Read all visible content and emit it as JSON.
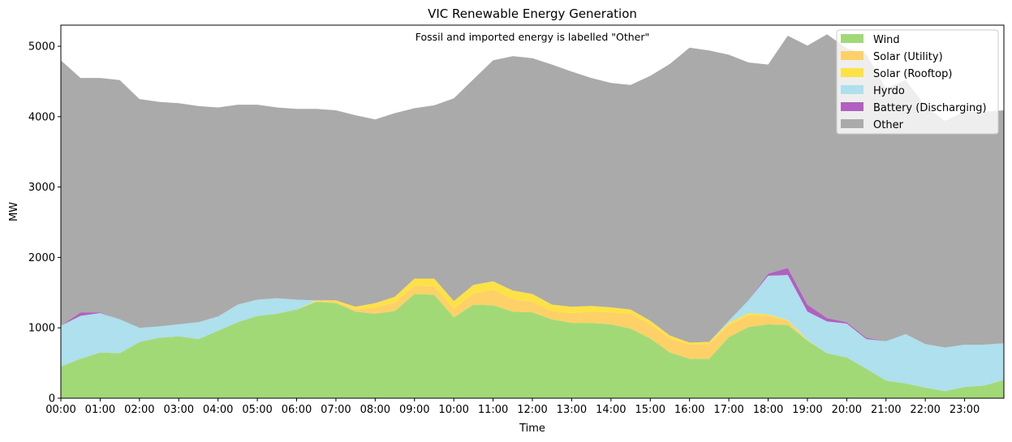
{
  "chart_data": {
    "type": "area",
    "stacked": true,
    "title": "VIC Renewable Energy Generation",
    "subtitle": "Fossil and imported energy is labelled \"Other\"",
    "xlabel": "Time",
    "ylabel": "MW",
    "xlim": [
      0,
      24
    ],
    "ylim": [
      0,
      5300
    ],
    "yticks": [
      0,
      1000,
      2000,
      3000,
      4000,
      5000
    ],
    "x_tick_labels": [
      "00:00",
      "01:00",
      "02:00",
      "03:00",
      "04:00",
      "05:00",
      "06:00",
      "07:00",
      "08:00",
      "09:00",
      "10:00",
      "11:00",
      "12:00",
      "13:00",
      "14:00",
      "15:00",
      "16:00",
      "17:00",
      "18:00",
      "19:00",
      "20:00",
      "21:00",
      "22:00",
      "23:00"
    ],
    "legend_position": "top-right",
    "x": [
      0,
      0.5,
      1,
      1.5,
      2,
      2.5,
      3,
      3.5,
      4,
      4.5,
      5,
      5.5,
      6,
      6.5,
      7,
      7.5,
      8,
      8.5,
      9,
      9.5,
      10,
      10.5,
      11,
      11.5,
      12,
      12.5,
      13,
      13.5,
      14,
      14.5,
      15,
      15.5,
      16,
      16.5,
      17,
      17.5,
      18,
      18.5,
      19,
      19.5,
      20,
      20.5,
      21,
      21.5,
      22,
      22.5,
      23,
      23.5,
      24
    ],
    "series": [
      {
        "name": "Wind",
        "color": "#a2d977",
        "values": [
          450,
          560,
          650,
          640,
          800,
          860,
          880,
          840,
          960,
          1080,
          1170,
          1200,
          1260,
          1370,
          1350,
          1230,
          1200,
          1240,
          1480,
          1470,
          1150,
          1330,
          1320,
          1230,
          1220,
          1120,
          1070,
          1070,
          1050,
          990,
          850,
          650,
          560,
          560,
          870,
          1010,
          1050,
          1040,
          820,
          640,
          580,
          420,
          250,
          210,
          150,
          100,
          160,
          180,
          260
        ]
      },
      {
        "name": "Solar (Utility)",
        "color": "#fdd167",
        "values": [
          0,
          0,
          0,
          0,
          0,
          0,
          0,
          0,
          0,
          0,
          0,
          0,
          0,
          10,
          20,
          30,
          90,
          120,
          120,
          120,
          120,
          160,
          220,
          180,
          150,
          120,
          140,
          160,
          170,
          210,
          200,
          200,
          200,
          210,
          170,
          170,
          120,
          60,
          0,
          0,
          0,
          0,
          0,
          0,
          0,
          0,
          0,
          0,
          0
        ]
      },
      {
        "name": "Solar (Rooftop)",
        "color": "#fde246",
        "values": [
          0,
          0,
          0,
          0,
          0,
          0,
          0,
          0,
          0,
          0,
          0,
          0,
          0,
          10,
          20,
          40,
          60,
          80,
          100,
          110,
          110,
          120,
          120,
          120,
          110,
          90,
          90,
          80,
          70,
          60,
          50,
          40,
          30,
          30,
          30,
          30,
          20,
          10,
          10,
          0,
          0,
          0,
          0,
          0,
          0,
          0,
          0,
          0,
          0
        ]
      },
      {
        "name": "Hyrdo",
        "color": "#aee0ed",
        "values": [
          580,
          610,
          560,
          480,
          200,
          160,
          170,
          240,
          200,
          250,
          230,
          220,
          140,
          0,
          0,
          0,
          0,
          0,
          0,
          0,
          0,
          0,
          0,
          0,
          0,
          0,
          0,
          0,
          0,
          0,
          0,
          0,
          0,
          0,
          30,
          180,
          550,
          640,
          400,
          450,
          480,
          420,
          560,
          700,
          620,
          620,
          600,
          580,
          520
        ]
      },
      {
        "name": "Battery (Discharging)",
        "color": "#b160bf",
        "values": [
          0,
          50,
          10,
          0,
          0,
          0,
          0,
          0,
          0,
          0,
          0,
          0,
          0,
          0,
          0,
          0,
          0,
          0,
          0,
          0,
          0,
          0,
          0,
          0,
          0,
          0,
          0,
          0,
          0,
          0,
          0,
          0,
          0,
          0,
          0,
          0,
          30,
          100,
          100,
          50,
          20,
          20,
          0,
          0,
          0,
          0,
          0,
          0,
          0
        ]
      },
      {
        "name": "Other",
        "color": "#aaaaaa",
        "values": [
          3770,
          3330,
          3330,
          3400,
          3250,
          3190,
          3140,
          3070,
          2970,
          2840,
          2770,
          2710,
          2710,
          2720,
          2700,
          2720,
          2610,
          2610,
          2420,
          2460,
          2880,
          2920,
          3140,
          3330,
          3350,
          3410,
          3340,
          3240,
          3190,
          3190,
          3480,
          3860,
          4190,
          4140,
          3780,
          3380,
          2970,
          3300,
          3680,
          4030,
          3890,
          4030,
          3590,
          3610,
          3380,
          3220,
          3310,
          3310,
          3310
        ]
      }
    ]
  }
}
